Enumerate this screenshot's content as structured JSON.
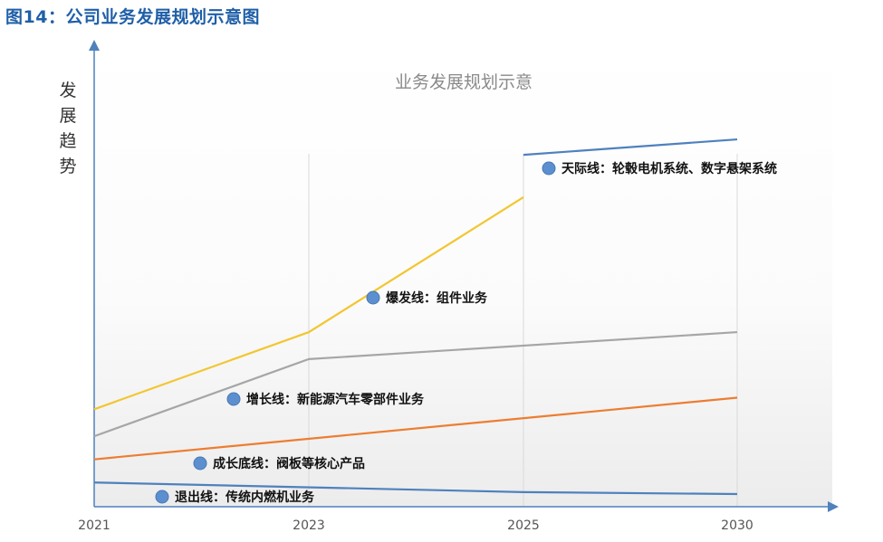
{
  "figure_title": "图14：公司业务发展规划示意图",
  "chart_data": {
    "type": "line",
    "title": "业务发展规划示意",
    "ylabel": "发展趋势",
    "xlabel": "",
    "categories": [
      "2021",
      "2023",
      "2025",
      "2030"
    ],
    "y_axis_values_shown": false,
    "grid": "vertical lines at 2023, 2025, 2030",
    "series": [
      {
        "name": "天际线：轮毂电机系统、数字悬架系统",
        "color": "#4f81bd",
        "x": [
          "2025",
          "2030"
        ],
        "values": [
          88,
          92
        ]
      },
      {
        "name": "爆发线：组件业务",
        "color": "#f2c630",
        "x": [
          "2021",
          "2023",
          "2025"
        ],
        "values": [
          22,
          42,
          77
        ]
      },
      {
        "name": "增长线：新能源汽车零部件业务",
        "color": "#a6a6a6",
        "x": [
          "2021",
          "2023",
          "2030"
        ],
        "values": [
          15,
          35,
          42
        ]
      },
      {
        "name": "成长底线：阀板等核心产品",
        "color": "#ed7d31",
        "x": [
          "2021",
          "2030"
        ],
        "values": [
          9,
          25
        ]
      },
      {
        "name": "退出线：传统内燃机业务",
        "color": "#4f81bd",
        "x": [
          "2021",
          "2025",
          "2030"
        ],
        "values": [
          3,
          0.5,
          0
        ]
      }
    ]
  }
}
